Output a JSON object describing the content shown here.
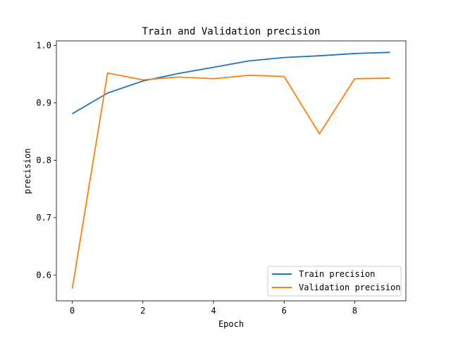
{
  "chart_data": {
    "type": "line",
    "title": "Train and Validation precision",
    "xlabel": "Epoch",
    "ylabel": "precision",
    "x": [
      0,
      1,
      2,
      3,
      4,
      5,
      6,
      7,
      8,
      9
    ],
    "xlim": [
      -0.45,
      9.45
    ],
    "ylim": [
      0.555,
      1.008
    ],
    "xticks": [
      0,
      2,
      4,
      6,
      8
    ],
    "yticks": [
      0.6,
      0.7,
      0.8,
      0.9,
      1.0
    ],
    "xtick_labels": [
      "0",
      "2",
      "4",
      "6",
      "8"
    ],
    "ytick_labels": [
      "0.6",
      "0.7",
      "0.8",
      "0.9",
      "1.0"
    ],
    "grid": false,
    "legend_position": "lower-right",
    "series": [
      {
        "name": "Train precision",
        "color": "#1f77b4",
        "values": [
          0.881,
          0.917,
          0.938,
          0.951,
          0.962,
          0.973,
          0.979,
          0.982,
          0.986,
          0.988
        ]
      },
      {
        "name": "Validation precision",
        "color": "#ff7f0e",
        "values": [
          0.576,
          0.952,
          0.94,
          0.945,
          0.942,
          0.948,
          0.946,
          0.846,
          0.942,
          0.943
        ]
      }
    ]
  }
}
